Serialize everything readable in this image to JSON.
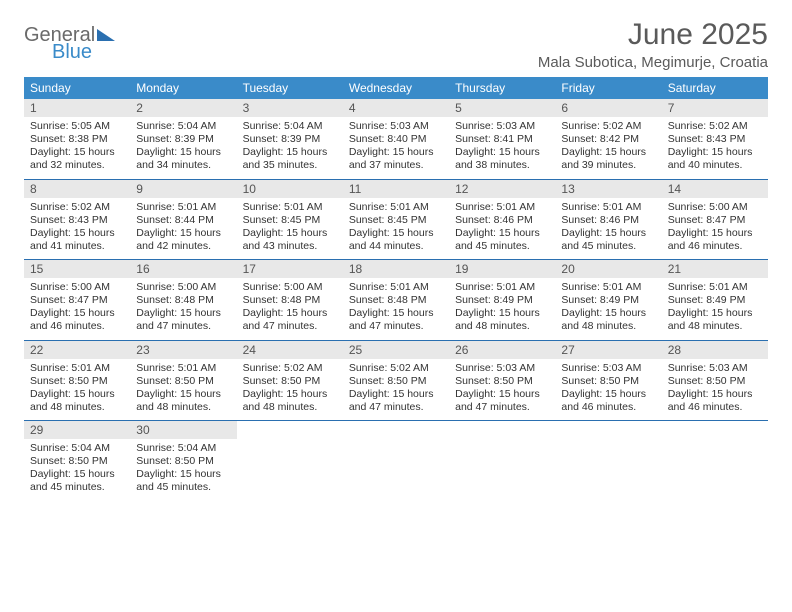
{
  "brand": {
    "general": "General",
    "blue": "Blue"
  },
  "title": "June 2025",
  "location": "Mala Subotica, Megimurje, Croatia",
  "colors": {
    "header_bg": "#3a8bc9",
    "header_text": "#ffffff",
    "daynum_bg": "#e8e8e8",
    "border": "#2a6fb0",
    "text": "#333333",
    "title_color": "#5a5a5a"
  },
  "weekdays": [
    "Sunday",
    "Monday",
    "Tuesday",
    "Wednesday",
    "Thursday",
    "Friday",
    "Saturday"
  ],
  "weeks": [
    [
      {
        "n": "1",
        "sr": "5:05 AM",
        "ss": "8:38 PM",
        "dl": "15 hours and 32 minutes."
      },
      {
        "n": "2",
        "sr": "5:04 AM",
        "ss": "8:39 PM",
        "dl": "15 hours and 34 minutes."
      },
      {
        "n": "3",
        "sr": "5:04 AM",
        "ss": "8:39 PM",
        "dl": "15 hours and 35 minutes."
      },
      {
        "n": "4",
        "sr": "5:03 AM",
        "ss": "8:40 PM",
        "dl": "15 hours and 37 minutes."
      },
      {
        "n": "5",
        "sr": "5:03 AM",
        "ss": "8:41 PM",
        "dl": "15 hours and 38 minutes."
      },
      {
        "n": "6",
        "sr": "5:02 AM",
        "ss": "8:42 PM",
        "dl": "15 hours and 39 minutes."
      },
      {
        "n": "7",
        "sr": "5:02 AM",
        "ss": "8:43 PM",
        "dl": "15 hours and 40 minutes."
      }
    ],
    [
      {
        "n": "8",
        "sr": "5:02 AM",
        "ss": "8:43 PM",
        "dl": "15 hours and 41 minutes."
      },
      {
        "n": "9",
        "sr": "5:01 AM",
        "ss": "8:44 PM",
        "dl": "15 hours and 42 minutes."
      },
      {
        "n": "10",
        "sr": "5:01 AM",
        "ss": "8:45 PM",
        "dl": "15 hours and 43 minutes."
      },
      {
        "n": "11",
        "sr": "5:01 AM",
        "ss": "8:45 PM",
        "dl": "15 hours and 44 minutes."
      },
      {
        "n": "12",
        "sr": "5:01 AM",
        "ss": "8:46 PM",
        "dl": "15 hours and 45 minutes."
      },
      {
        "n": "13",
        "sr": "5:01 AM",
        "ss": "8:46 PM",
        "dl": "15 hours and 45 minutes."
      },
      {
        "n": "14",
        "sr": "5:00 AM",
        "ss": "8:47 PM",
        "dl": "15 hours and 46 minutes."
      }
    ],
    [
      {
        "n": "15",
        "sr": "5:00 AM",
        "ss": "8:47 PM",
        "dl": "15 hours and 46 minutes."
      },
      {
        "n": "16",
        "sr": "5:00 AM",
        "ss": "8:48 PM",
        "dl": "15 hours and 47 minutes."
      },
      {
        "n": "17",
        "sr": "5:00 AM",
        "ss": "8:48 PM",
        "dl": "15 hours and 47 minutes."
      },
      {
        "n": "18",
        "sr": "5:01 AM",
        "ss": "8:48 PM",
        "dl": "15 hours and 47 minutes."
      },
      {
        "n": "19",
        "sr": "5:01 AM",
        "ss": "8:49 PM",
        "dl": "15 hours and 48 minutes."
      },
      {
        "n": "20",
        "sr": "5:01 AM",
        "ss": "8:49 PM",
        "dl": "15 hours and 48 minutes."
      },
      {
        "n": "21",
        "sr": "5:01 AM",
        "ss": "8:49 PM",
        "dl": "15 hours and 48 minutes."
      }
    ],
    [
      {
        "n": "22",
        "sr": "5:01 AM",
        "ss": "8:50 PM",
        "dl": "15 hours and 48 minutes."
      },
      {
        "n": "23",
        "sr": "5:01 AM",
        "ss": "8:50 PM",
        "dl": "15 hours and 48 minutes."
      },
      {
        "n": "24",
        "sr": "5:02 AM",
        "ss": "8:50 PM",
        "dl": "15 hours and 48 minutes."
      },
      {
        "n": "25",
        "sr": "5:02 AM",
        "ss": "8:50 PM",
        "dl": "15 hours and 47 minutes."
      },
      {
        "n": "26",
        "sr": "5:03 AM",
        "ss": "8:50 PM",
        "dl": "15 hours and 47 minutes."
      },
      {
        "n": "27",
        "sr": "5:03 AM",
        "ss": "8:50 PM",
        "dl": "15 hours and 46 minutes."
      },
      {
        "n": "28",
        "sr": "5:03 AM",
        "ss": "8:50 PM",
        "dl": "15 hours and 46 minutes."
      }
    ],
    [
      {
        "n": "29",
        "sr": "5:04 AM",
        "ss": "8:50 PM",
        "dl": "15 hours and 45 minutes."
      },
      {
        "n": "30",
        "sr": "5:04 AM",
        "ss": "8:50 PM",
        "dl": "15 hours and 45 minutes."
      },
      null,
      null,
      null,
      null,
      null
    ]
  ],
  "labels": {
    "sunrise": "Sunrise:",
    "sunset": "Sunset:",
    "daylight": "Daylight:"
  }
}
